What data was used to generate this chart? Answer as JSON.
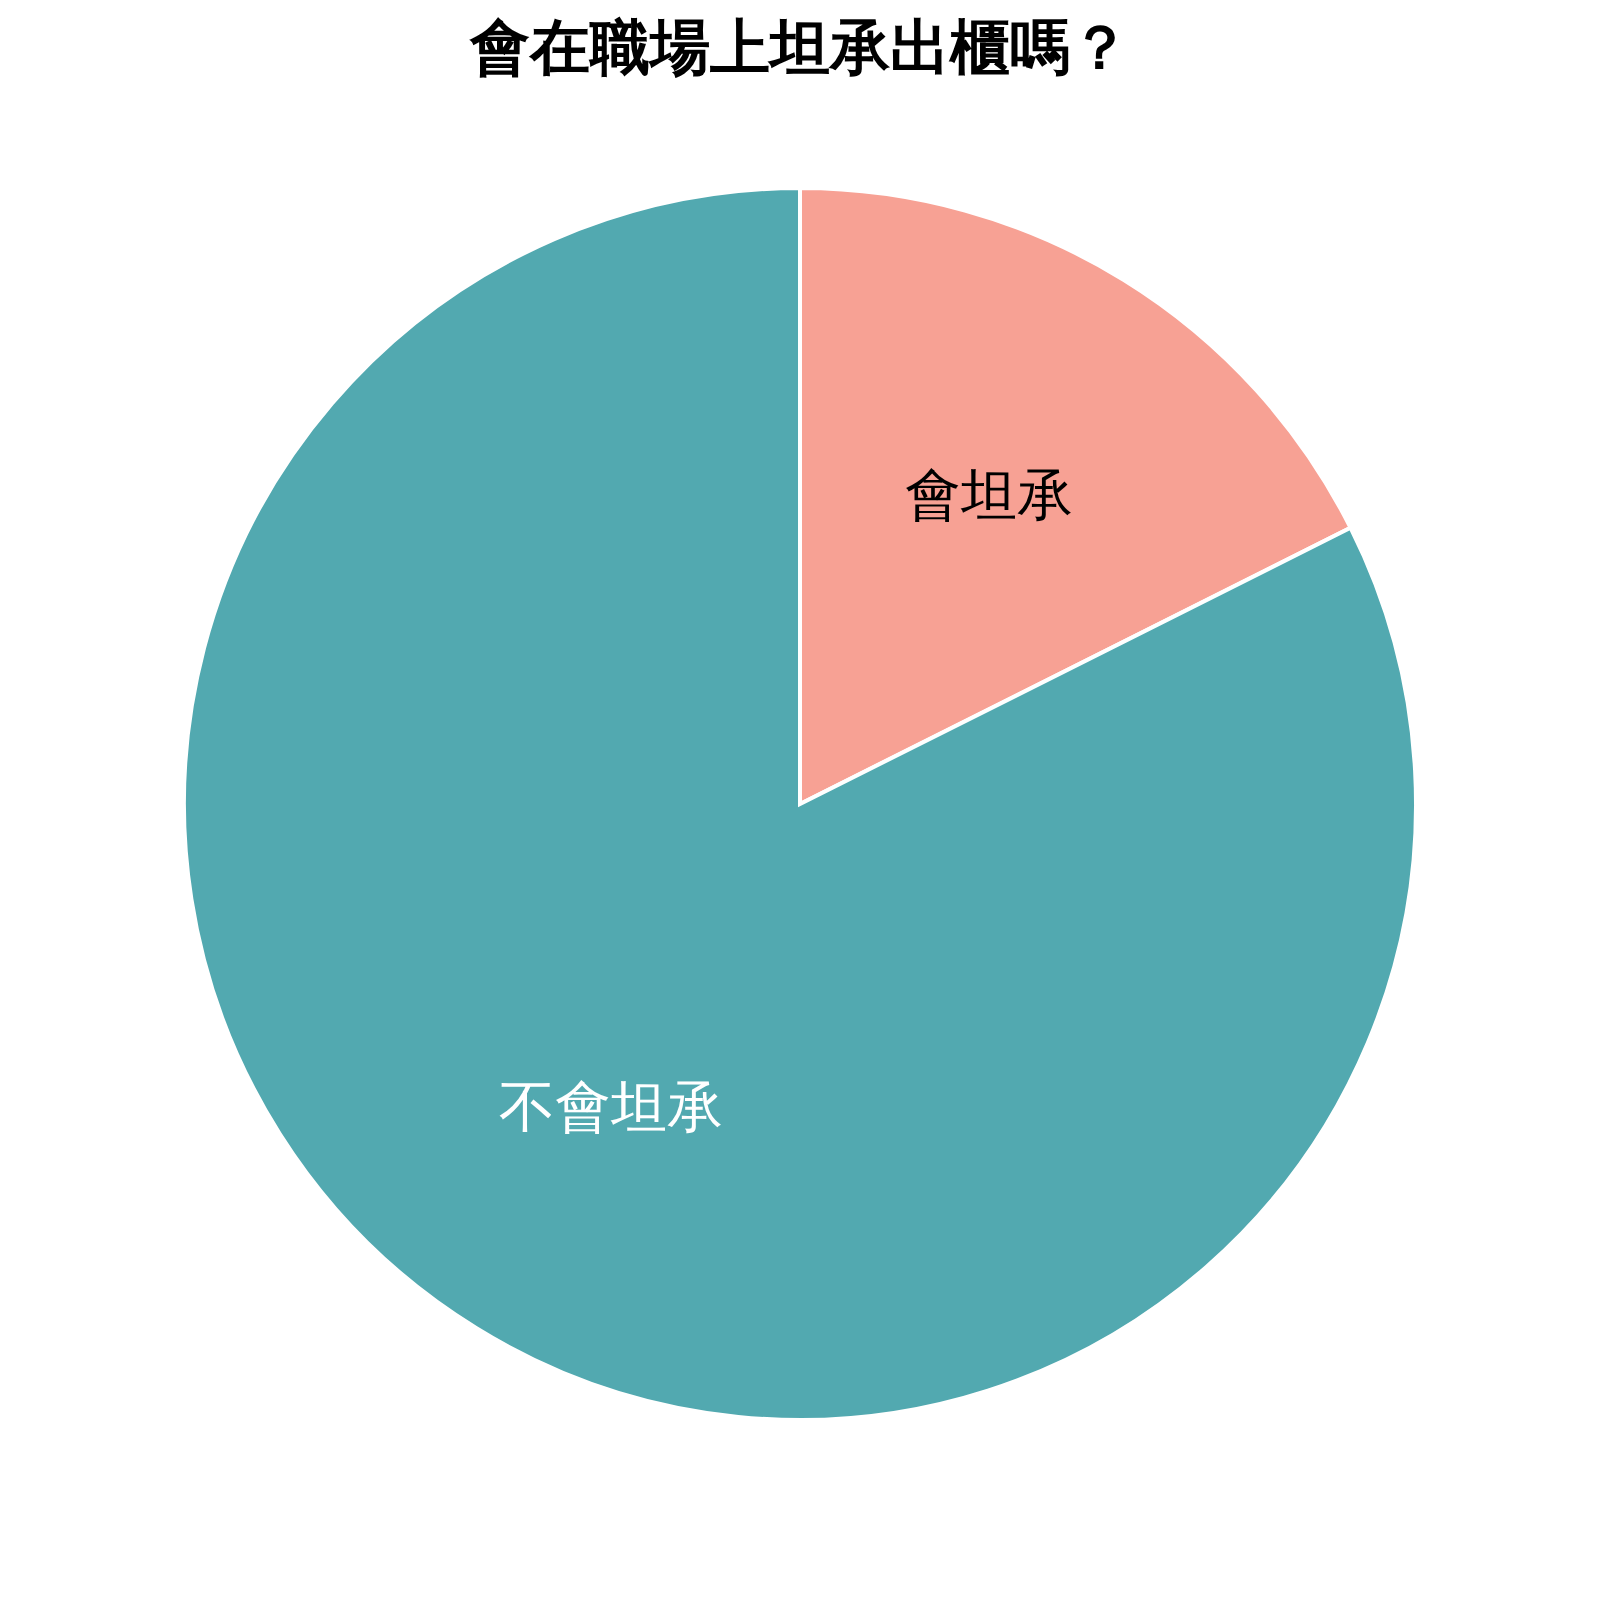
{
  "chart_data": {
    "type": "pie",
    "title": "會在職場上坦承出櫃嗎？",
    "categories": [
      "會坦承",
      "不會坦承"
    ],
    "values": [
      17.6,
      82.4
    ],
    "colors": [
      "#f7a194",
      "#52a9b0"
    ],
    "legend": false
  }
}
